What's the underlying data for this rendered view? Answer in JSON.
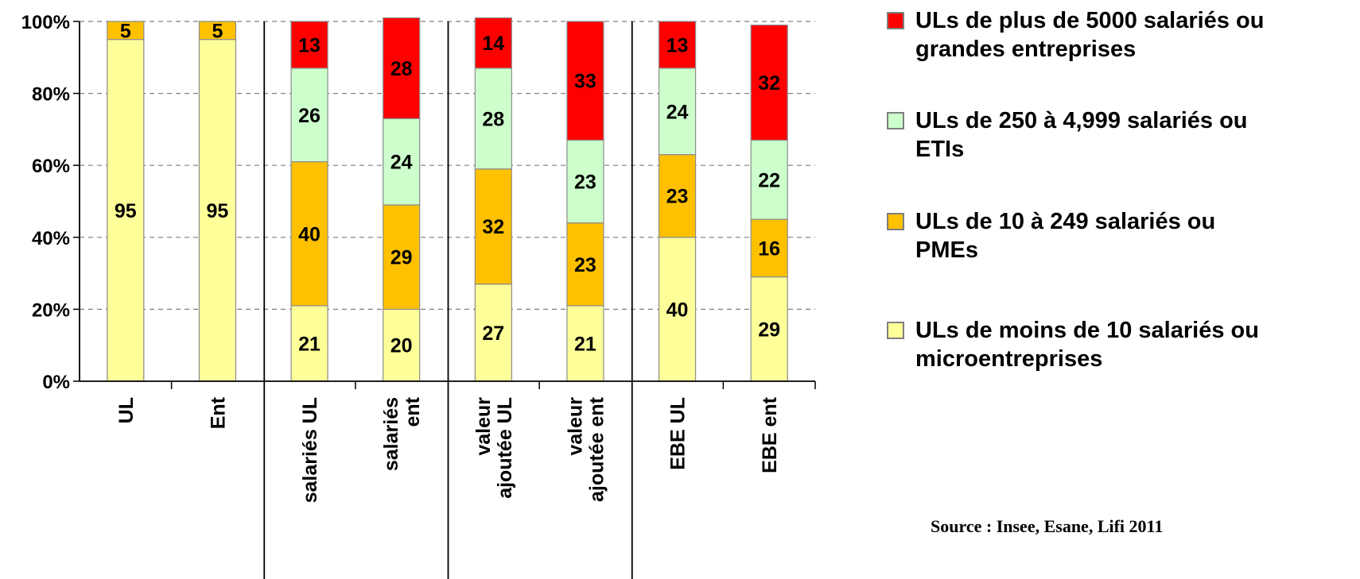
{
  "chart_data": {
    "type": "bar",
    "stacked": true,
    "percent": true,
    "categories": [
      "UL",
      "Ent",
      "salariés UL",
      "salariés ent",
      "valeur ajoutée UL",
      "valeur ajoutée ent",
      "EBE UL",
      "EBE ent"
    ],
    "category_lines": [
      [
        "UL"
      ],
      [
        "Ent"
      ],
      [
        "salariés UL"
      ],
      [
        "salariés",
        "ent"
      ],
      [
        "valeur",
        "ajoutée UL"
      ],
      [
        "valeur",
        "ajoutée ent"
      ],
      [
        "EBE UL"
      ],
      [
        "EBE ent"
      ]
    ],
    "series": [
      {
        "name": "ULs de moins de 10 salariés ou microentreprises",
        "color": "#ffff99",
        "values": [
          95,
          95,
          21,
          20,
          27,
          21,
          40,
          29
        ]
      },
      {
        "name": "ULs de 10 à 249  salariés ou PMEs",
        "color": "#ffc000",
        "values": [
          5,
          5,
          40,
          29,
          32,
          23,
          23,
          16
        ]
      },
      {
        "name": "ULs de 250 à 4,999 salariés ou ETIs",
        "color": "#ccffcc",
        "values": [
          null,
          null,
          26,
          24,
          28,
          23,
          24,
          22
        ]
      },
      {
        "name": "ULs de plus de 5000 salariés ou grandes entreprises",
        "color": "#ff0000",
        "values": [
          null,
          null,
          13,
          28,
          14,
          33,
          13,
          32
        ]
      }
    ],
    "y_ticks": [
      "0%",
      "20%",
      "40%",
      "60%",
      "80%",
      "100%"
    ],
    "ylim": [
      0,
      100
    ],
    "grid": true,
    "legend_position": "right",
    "group_separators_after": [
      2,
      4,
      6
    ]
  },
  "legend": {
    "items": [
      {
        "label": "ULs de plus de 5000 salariés ou grandes entreprises",
        "color": "#ff0000"
      },
      {
        "label": "ULs de 250 à 4,999 salariés ou ETIs",
        "color": "#ccffcc"
      },
      {
        "label": "ULs de 10 à 249  salariés ou PMEs",
        "color": "#ffc000"
      },
      {
        "label": "ULs de moins de 10 salariés ou microentreprises",
        "color": "#ffff99"
      }
    ]
  },
  "source": "Source : Insee, Esane, Lifi 2011"
}
